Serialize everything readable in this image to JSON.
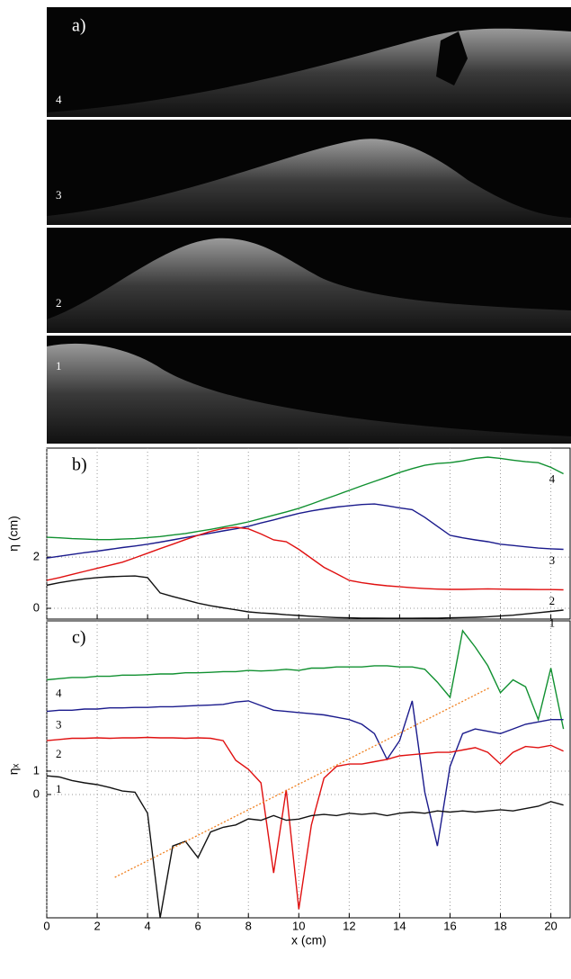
{
  "chart_data": [
    {
      "type": "image",
      "panel_label": "a)",
      "frames": [
        "4",
        "3",
        "2",
        "1"
      ]
    },
    {
      "type": "line",
      "panel_label": "b)",
      "ylabel": "η (cm)",
      "xlim": [
        0,
        20.8
      ],
      "ylim": [
        -0.42,
        6.25
      ],
      "yticks": [
        0,
        2
      ],
      "xticks": [
        0,
        2,
        4,
        6,
        8,
        10,
        12,
        14,
        16,
        18,
        20
      ],
      "show_xtick_labels": false,
      "grid": true,
      "x": [
        0,
        0.5,
        1,
        1.5,
        2,
        2.5,
        3,
        3.5,
        4,
        4.5,
        5,
        5.5,
        6,
        6.5,
        7,
        7.5,
        8,
        8.5,
        9,
        9.5,
        10,
        10.5,
        11,
        11.5,
        12,
        12.5,
        13,
        13.5,
        14,
        14.5,
        15,
        15.5,
        16,
        16.5,
        17,
        17.5,
        18,
        18.5,
        19,
        19.5,
        20,
        20.5
      ],
      "series": [
        {
          "name": "4",
          "color": "#109030",
          "values": [
            2.77,
            2.75,
            2.72,
            2.7,
            2.68,
            2.68,
            2.7,
            2.72,
            2.76,
            2.8,
            2.86,
            2.92,
            3.0,
            3.08,
            3.17,
            3.27,
            3.37,
            3.5,
            3.63,
            3.76,
            3.9,
            4.07,
            4.25,
            4.42,
            4.6,
            4.78,
            4.95,
            5.12,
            5.3,
            5.45,
            5.58,
            5.65,
            5.68,
            5.75,
            5.85,
            5.9,
            5.85,
            5.78,
            5.72,
            5.68,
            5.5,
            5.25
          ]
        },
        {
          "name": "3",
          "color": "#1a1a8c",
          "values": [
            1.96,
            2.03,
            2.1,
            2.17,
            2.23,
            2.3,
            2.37,
            2.43,
            2.5,
            2.58,
            2.67,
            2.76,
            2.85,
            2.93,
            3.02,
            3.1,
            3.2,
            3.33,
            3.45,
            3.58,
            3.7,
            3.8,
            3.88,
            3.95,
            4.0,
            4.05,
            4.07,
            4.0,
            3.92,
            3.85,
            3.55,
            3.2,
            2.85,
            2.75,
            2.67,
            2.6,
            2.5,
            2.45,
            2.4,
            2.35,
            2.32,
            2.3
          ]
        },
        {
          "name": "2",
          "color": "#e01010",
          "values": [
            1.09,
            1.2,
            1.32,
            1.44,
            1.56,
            1.68,
            1.8,
            1.97,
            2.15,
            2.33,
            2.5,
            2.68,
            2.85,
            3.0,
            3.12,
            3.16,
            3.1,
            2.9,
            2.67,
            2.6,
            2.3,
            1.95,
            1.6,
            1.35,
            1.09,
            1.0,
            0.93,
            0.88,
            0.84,
            0.8,
            0.77,
            0.75,
            0.74,
            0.74,
            0.75,
            0.76,
            0.75,
            0.74,
            0.74,
            0.73,
            0.73,
            0.72
          ]
        },
        {
          "name": "1",
          "color": "#111111",
          "values": [
            0.9,
            1.0,
            1.08,
            1.15,
            1.2,
            1.23,
            1.25,
            1.26,
            1.2,
            0.6,
            0.46,
            0.33,
            0.2,
            0.1,
            0.02,
            -0.06,
            -0.14,
            -0.18,
            -0.21,
            -0.25,
            -0.28,
            -0.31,
            -0.34,
            -0.36,
            -0.37,
            -0.38,
            -0.38,
            -0.39,
            -0.39,
            -0.39,
            -0.38,
            -0.38,
            -0.37,
            -0.36,
            -0.35,
            -0.33,
            -0.3,
            -0.27,
            -0.22,
            -0.17,
            -0.12,
            -0.07
          ]
        }
      ]
    },
    {
      "type": "line",
      "panel_label": "c)",
      "ylabel": "ηₓ",
      "xlabel": "x  (cm)",
      "xlim": [
        0,
        20.8
      ],
      "ylim": [
        -5.27,
        7.42
      ],
      "yticks": [
        0,
        1
      ],
      "xticks": [
        0,
        2,
        4,
        6,
        8,
        10,
        12,
        14,
        16,
        18,
        20
      ],
      "show_xtick_labels": true,
      "grid": true,
      "x": [
        0,
        0.5,
        1,
        1.5,
        2,
        2.5,
        3,
        3.5,
        4,
        4.5,
        5,
        5.5,
        6,
        6.5,
        7,
        7.5,
        8,
        8.5,
        9,
        9.5,
        10,
        10.5,
        11,
        11.5,
        12,
        12.5,
        13,
        13.5,
        14,
        14.5,
        15,
        15.5,
        16,
        16.5,
        17,
        17.5,
        18,
        18.5,
        19,
        19.5,
        20,
        20.5
      ],
      "series": [
        {
          "name": "4",
          "color": "#109030",
          "values": [
            4.9,
            4.95,
            5.0,
            5.0,
            5.05,
            5.05,
            5.1,
            5.1,
            5.12,
            5.15,
            5.15,
            5.2,
            5.2,
            5.22,
            5.25,
            5.25,
            5.3,
            5.28,
            5.3,
            5.35,
            5.3,
            5.4,
            5.4,
            5.45,
            5.45,
            5.45,
            5.5,
            5.5,
            5.45,
            5.45,
            5.35,
            4.8,
            4.15,
            7.0,
            6.3,
            5.5,
            4.35,
            4.9,
            4.6,
            3.2,
            5.4,
            2.8
          ]
        },
        {
          "name": "3",
          "color": "#1a1a8c",
          "values": [
            3.55,
            3.6,
            3.6,
            3.65,
            3.65,
            3.7,
            3.7,
            3.72,
            3.72,
            3.75,
            3.75,
            3.78,
            3.8,
            3.82,
            3.85,
            3.95,
            4.0,
            3.8,
            3.6,
            3.55,
            3.5,
            3.45,
            3.4,
            3.3,
            3.2,
            3.0,
            2.6,
            1.5,
            2.3,
            4.0,
            0.1,
            -2.2,
            1.2,
            2.6,
            2.8,
            2.7,
            2.6,
            2.8,
            3.0,
            3.1,
            3.2,
            3.2
          ]
        },
        {
          "name": "2",
          "color": "#e01010",
          "values": [
            2.3,
            2.35,
            2.4,
            2.4,
            2.42,
            2.4,
            2.42,
            2.42,
            2.44,
            2.42,
            2.42,
            2.4,
            2.42,
            2.4,
            2.3,
            1.46,
            1.08,
            0.5,
            -3.35,
            0.2,
            -4.9,
            -1.3,
            0.7,
            1.2,
            1.3,
            1.3,
            1.4,
            1.5,
            1.65,
            1.7,
            1.75,
            1.8,
            1.8,
            1.9,
            2.0,
            1.8,
            1.3,
            1.8,
            2.05,
            2.0,
            2.1,
            1.85
          ]
        },
        {
          "name": "1",
          "color": "#111111",
          "values": [
            0.8,
            0.75,
            0.6,
            0.5,
            0.42,
            0.3,
            0.15,
            0.1,
            -0.8,
            -5.27,
            -2.2,
            -2.0,
            -2.7,
            -1.6,
            -1.4,
            -1.3,
            -1.04,
            -1.1,
            -0.9,
            -1.1,
            -1.05,
            -0.9,
            -0.85,
            -0.9,
            -0.8,
            -0.85,
            -0.8,
            -0.9,
            -0.8,
            -0.75,
            -0.8,
            -0.7,
            -0.75,
            -0.7,
            -0.75,
            -0.7,
            -0.65,
            -0.7,
            -0.6,
            -0.5,
            -0.3,
            -0.45
          ]
        }
      ],
      "fit_line": {
        "color": "#f08020",
        "x": [
          2.7,
          17.6
        ],
        "values": [
          -3.54,
          4.58
        ]
      }
    }
  ]
}
